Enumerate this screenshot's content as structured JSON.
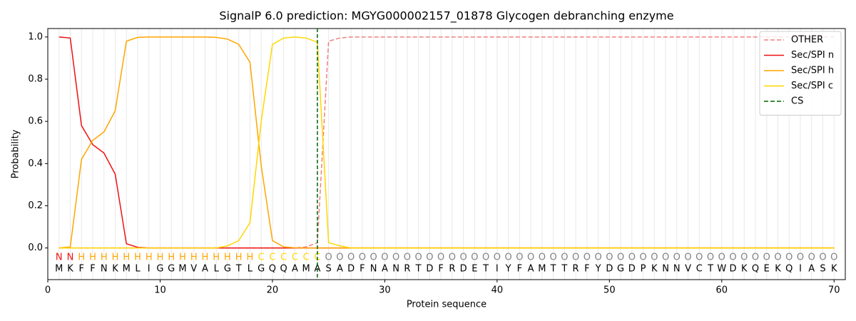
{
  "chart_data": {
    "type": "line",
    "title": "SignalP 6.0 prediction: MGYG000002157_01878 Glycogen debranching enzyme",
    "xlabel": "Protein sequence",
    "ylabel": "Probability",
    "xlim": [
      0,
      71
    ],
    "ylim": [
      -0.15,
      1.04
    ],
    "xticks": [
      0,
      10,
      20,
      30,
      40,
      50,
      60,
      70
    ],
    "yticks": [
      {
        "value": 0,
        "label": "0.0"
      },
      0.2,
      0.4,
      0.6,
      0.8,
      {
        "value": 1,
        "label": "1.0"
      }
    ],
    "legend": "upper right",
    "x": [
      1,
      2,
      3,
      4,
      5,
      6,
      7,
      8,
      9,
      10,
      11,
      12,
      13,
      14,
      15,
      16,
      17,
      18,
      19,
      20,
      21,
      22,
      23,
      24,
      25,
      26,
      27,
      28,
      29,
      30,
      31,
      32,
      33,
      34,
      35,
      36,
      37,
      38,
      39,
      40,
      41,
      42,
      43,
      44,
      45,
      46,
      47,
      48,
      49,
      50,
      51,
      52,
      53,
      54,
      55,
      56,
      57,
      58,
      59,
      60,
      61,
      62,
      63,
      64,
      65,
      66,
      67,
      68,
      69,
      70
    ],
    "sequence": [
      "M",
      "K",
      "F",
      "F",
      "N",
      "K",
      "M",
      "L",
      "I",
      "G",
      "G",
      "M",
      "V",
      "A",
      "L",
      "G",
      "T",
      "L",
      "G",
      "Q",
      "Q",
      "A",
      "M",
      "A",
      "S",
      "A",
      "D",
      "F",
      "N",
      "A",
      "N",
      "R",
      "T",
      "D",
      "F",
      "R",
      "D",
      "E",
      "T",
      "I",
      "Y",
      "F",
      "A",
      "M",
      "T",
      "T",
      "R",
      "F",
      "Y",
      "D",
      "G",
      "D",
      "P",
      "K",
      "N",
      "N",
      "V",
      "C",
      "T",
      "W",
      "D",
      "K",
      "Q",
      "E",
      "K",
      "Q",
      "I",
      "A",
      "S",
      "K"
    ],
    "region_labels": [
      "N",
      "N",
      "H",
      "H",
      "H",
      "H",
      "H",
      "H",
      "H",
      "H",
      "H",
      "H",
      "H",
      "H",
      "H",
      "H",
      "H",
      "H",
      "C",
      "C",
      "C",
      "C",
      "C",
      "C",
      "O",
      "O",
      "O",
      "O",
      "O",
      "O",
      "O",
      "O",
      "O",
      "O",
      "O",
      "O",
      "O",
      "O",
      "O",
      "O",
      "O",
      "O",
      "O",
      "O",
      "O",
      "O",
      "O",
      "O",
      "O",
      "O",
      "O",
      "O",
      "O",
      "O",
      "O",
      "O",
      "O",
      "O",
      "O",
      "O",
      "O",
      "O",
      "O",
      "O",
      "O",
      "O",
      "O",
      "O",
      "O",
      "O"
    ],
    "region_colors": {
      "N": "#ee1111",
      "H": "#ffa500",
      "C": "#ffd700",
      "O": "#808080"
    },
    "series": [
      {
        "name": "OTHER",
        "color": "#f08080",
        "dash": true,
        "values": [
          0,
          0,
          0,
          0,
          0,
          0,
          0,
          0,
          0,
          0,
          0,
          0,
          0,
          0,
          0,
          0,
          0,
          0,
          0,
          0,
          0,
          0,
          0.005,
          0.025,
          0.98,
          0.995,
          1,
          1,
          1,
          1,
          1,
          1,
          1,
          1,
          1,
          1,
          1,
          1,
          1,
          1,
          1,
          1,
          1,
          1,
          1,
          1,
          1,
          1,
          1,
          1,
          1,
          1,
          1,
          1,
          1,
          1,
          1,
          1,
          1,
          1,
          1,
          1,
          1,
          1,
          1,
          1,
          1,
          1,
          1,
          1
        ]
      },
      {
        "name": "Sec/SPI n",
        "color": "#ee1111",
        "values": [
          1.0,
          0.995,
          0.58,
          0.49,
          0.45,
          0.35,
          0.02,
          0.003,
          0,
          0,
          0,
          0,
          0,
          0,
          0,
          0,
          0,
          0,
          0,
          0,
          0,
          0,
          0,
          0,
          0,
          0,
          0,
          0,
          0,
          0,
          0,
          0,
          0,
          0,
          0,
          0,
          0,
          0,
          0,
          0,
          0,
          0,
          0,
          0,
          0,
          0,
          0,
          0,
          0,
          0,
          0,
          0,
          0,
          0,
          0,
          0,
          0,
          0,
          0,
          0,
          0,
          0,
          0,
          0,
          0,
          0,
          0,
          0,
          0,
          0
        ]
      },
      {
        "name": "Sec/SPI h",
        "color": "#ffa500",
        "values": [
          0,
          0.005,
          0.42,
          0.51,
          0.55,
          0.65,
          0.98,
          0.998,
          1,
          1,
          1,
          1,
          1,
          1,
          0.998,
          0.99,
          0.965,
          0.88,
          0.39,
          0.035,
          0.005,
          0.001,
          0,
          0,
          0,
          0,
          0,
          0,
          0,
          0,
          0,
          0,
          0,
          0,
          0,
          0,
          0,
          0,
          0,
          0,
          0,
          0,
          0,
          0,
          0,
          0,
          0,
          0,
          0,
          0,
          0,
          0,
          0,
          0,
          0,
          0,
          0,
          0,
          0,
          0,
          0,
          0,
          0,
          0,
          0,
          0,
          0,
          0,
          0,
          0
        ]
      },
      {
        "name": "Sec/SPI c",
        "color": "#ffd700",
        "values": [
          0,
          0,
          0,
          0,
          0,
          0,
          0,
          0,
          0,
          0,
          0,
          0,
          0,
          0,
          0,
          0.01,
          0.035,
          0.12,
          0.6,
          0.965,
          0.995,
          1,
          0.995,
          0.975,
          0.025,
          0.01,
          0,
          0,
          0,
          0,
          0,
          0,
          0,
          0,
          0,
          0,
          0,
          0,
          0,
          0,
          0,
          0,
          0,
          0,
          0,
          0,
          0,
          0,
          0,
          0,
          0,
          0,
          0,
          0,
          0,
          0,
          0,
          0,
          0,
          0,
          0,
          0,
          0,
          0,
          0,
          0,
          0,
          0,
          0,
          0
        ]
      }
    ],
    "cs": {
      "name": "CS",
      "color": "#006400",
      "x": 24
    }
  }
}
